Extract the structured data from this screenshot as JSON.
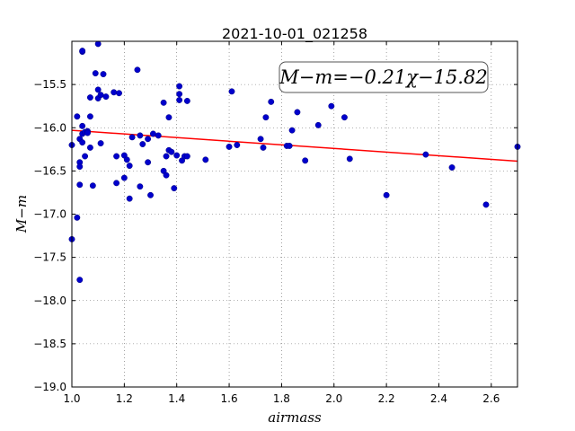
{
  "chart_data": {
    "type": "scatter",
    "title": "2021-10-01_021258",
    "xlabel": "airmass",
    "ylabel": "M−m",
    "xlim": [
      1.0,
      2.7
    ],
    "ylim": [
      -19.0,
      -15.0
    ],
    "y_inverted": true,
    "grid": true,
    "xticks": [
      1.0,
      1.2,
      1.4,
      1.6,
      1.8,
      2.0,
      2.2,
      2.4,
      2.6
    ],
    "xtick_labels": [
      "1.0",
      "1.2",
      "1.4",
      "1.6",
      "1.8",
      "2.0",
      "2.2",
      "2.4",
      "2.6"
    ],
    "yticks": [
      -15.5,
      -16.0,
      -16.5,
      -17.0,
      -17.5,
      -18.0,
      -18.5,
      -19.0
    ],
    "ytick_labels": [
      "−15.5",
      "−16.0",
      "−16.5",
      "−17.0",
      "−17.5",
      "−18.0",
      "−18.5",
      "−19.0"
    ],
    "annotation": "M−m=−0.21χ−15.82",
    "annotation_position": "top-right",
    "point_color": "#0000cc",
    "fit_color": "#ff0000",
    "fit": {
      "slope": -0.21,
      "intercept": -15.82
    },
    "points": [
      [
        1.0,
        -16.2
      ],
      [
        1.0,
        -17.29
      ],
      [
        1.02,
        -15.87
      ],
      [
        1.02,
        -17.04
      ],
      [
        1.03,
        -16.13
      ],
      [
        1.03,
        -16.4
      ],
      [
        1.03,
        -16.66
      ],
      [
        1.03,
        -17.76
      ],
      [
        1.03,
        -16.45
      ],
      [
        1.04,
        -15.12
      ],
      [
        1.04,
        -15.11
      ],
      [
        1.04,
        -16.07
      ],
      [
        1.04,
        -16.17
      ],
      [
        1.04,
        -15.98
      ],
      [
        1.05,
        -16.33
      ],
      [
        1.05,
        -16.05
      ],
      [
        1.06,
        -16.04
      ],
      [
        1.06,
        -16.06
      ],
      [
        1.07,
        -15.65
      ],
      [
        1.07,
        -16.23
      ],
      [
        1.07,
        -15.87
      ],
      [
        1.08,
        -16.67
      ],
      [
        1.09,
        -15.37
      ],
      [
        1.1,
        -15.66
      ],
      [
        1.1,
        -15.56
      ],
      [
        1.1,
        -15.03
      ],
      [
        1.11,
        -15.62
      ],
      [
        1.11,
        -16.18
      ],
      [
        1.12,
        -15.38
      ],
      [
        1.13,
        -15.64
      ],
      [
        1.16,
        -15.59
      ],
      [
        1.17,
        -16.33
      ],
      [
        1.17,
        -16.64
      ],
      [
        1.18,
        -15.6
      ],
      [
        1.2,
        -16.32
      ],
      [
        1.2,
        -16.58
      ],
      [
        1.21,
        -16.37
      ],
      [
        1.22,
        -16.82
      ],
      [
        1.22,
        -16.44
      ],
      [
        1.23,
        -16.11
      ],
      [
        1.25,
        -15.33
      ],
      [
        1.26,
        -16.09
      ],
      [
        1.26,
        -16.68
      ],
      [
        1.27,
        -16.19
      ],
      [
        1.29,
        -16.13
      ],
      [
        1.29,
        -16.4
      ],
      [
        1.3,
        -16.78
      ],
      [
        1.31,
        -16.07
      ],
      [
        1.33,
        -16.09
      ],
      [
        1.35,
        -15.71
      ],
      [
        1.35,
        -16.5
      ],
      [
        1.36,
        -16.55
      ],
      [
        1.36,
        -16.33
      ],
      [
        1.37,
        -16.26
      ],
      [
        1.37,
        -15.88
      ],
      [
        1.38,
        -16.28
      ],
      [
        1.39,
        -16.7
      ],
      [
        1.4,
        -16.32
      ],
      [
        1.41,
        -15.52
      ],
      [
        1.41,
        -15.61
      ],
      [
        1.41,
        -15.68
      ],
      [
        1.42,
        -16.38
      ],
      [
        1.43,
        -16.33
      ],
      [
        1.44,
        -16.33
      ],
      [
        1.44,
        -15.69
      ],
      [
        1.51,
        -16.37
      ],
      [
        1.6,
        -16.22
      ],
      [
        1.61,
        -15.58
      ],
      [
        1.63,
        -16.2
      ],
      [
        1.72,
        -16.13
      ],
      [
        1.73,
        -16.23
      ],
      [
        1.74,
        -15.88
      ],
      [
        1.76,
        -15.7
      ],
      [
        1.82,
        -16.21
      ],
      [
        1.83,
        -16.21
      ],
      [
        1.84,
        -16.03
      ],
      [
        1.86,
        -15.82
      ],
      [
        1.89,
        -16.38
      ],
      [
        1.94,
        -15.97
      ],
      [
        1.99,
        -15.75
      ],
      [
        2.04,
        -15.88
      ],
      [
        2.06,
        -16.36
      ],
      [
        2.2,
        -16.78
      ],
      [
        2.35,
        -16.31
      ],
      [
        2.45,
        -16.46
      ],
      [
        2.58,
        -16.89
      ],
      [
        2.7,
        -16.22
      ]
    ]
  }
}
